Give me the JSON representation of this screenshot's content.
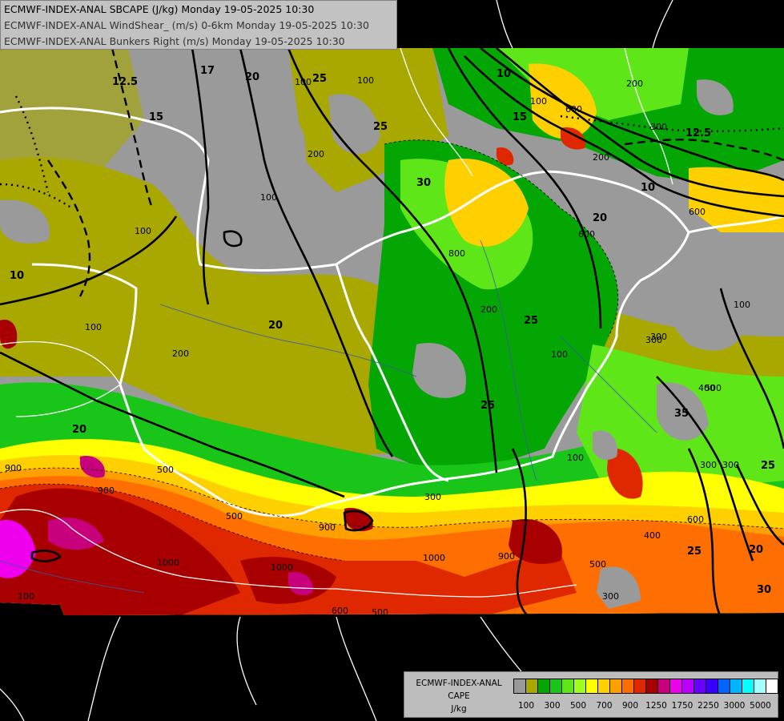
{
  "header": {
    "line1": "ECMWF-INDEX-ANAL SBCAPE (J/kg) Monday 19-05-2025 10:30",
    "line2": "ECMWF-INDEX-ANAL WindShear_ (m/s) 0-6km Monday 19-05-2025 10:30",
    "line3": "ECMWF-INDEX-ANAL Bunkers Right (m/s) Monday 19-05-2025 10:30"
  },
  "legend": {
    "title1": "ECMWF-INDEX-ANAL",
    "title2": "CAPE",
    "title3": "J/kg",
    "colors": [
      "#9a9a9a",
      "#a8a800",
      "#04a604",
      "#19c519",
      "#5ee619",
      "#9dff1f",
      "#ffff00",
      "#ffd000",
      "#ffa000",
      "#ff6e00",
      "#e02800",
      "#a80000",
      "#c8007c",
      "#ee00ee",
      "#b800ff",
      "#6a00ff",
      "#3800ff",
      "#0064ff",
      "#00b4ff",
      "#00ffff",
      "#a6ffff",
      "#ffffff"
    ],
    "ticks": [
      "100",
      "300",
      "500",
      "700",
      "900",
      "1250",
      "1750",
      "2250",
      "3000",
      "5000"
    ]
  },
  "contour_labels": {
    "shear": [
      "10",
      "12.5",
      "15",
      "17",
      "20",
      "20",
      "25",
      "25",
      "30",
      "35",
      "25",
      "10",
      "12.5",
      "15",
      "10",
      "20",
      "25",
      "25",
      "20",
      "25",
      "30",
      "20"
    ],
    "cape": [
      "100",
      "100",
      "200",
      "100",
      "100",
      "200",
      "100",
      "100",
      "200",
      "200",
      "300",
      "600",
      "800",
      "600",
      "600",
      "900",
      "500",
      "300",
      "400",
      "300",
      "500",
      "900",
      "1000",
      "1000",
      "1000",
      "600",
      "500",
      "500",
      "300",
      "900",
      "100",
      "900",
      "100",
      "300",
      "500",
      "300",
      "600",
      "400",
      "200",
      "100",
      "100",
      "300"
    ]
  }
}
